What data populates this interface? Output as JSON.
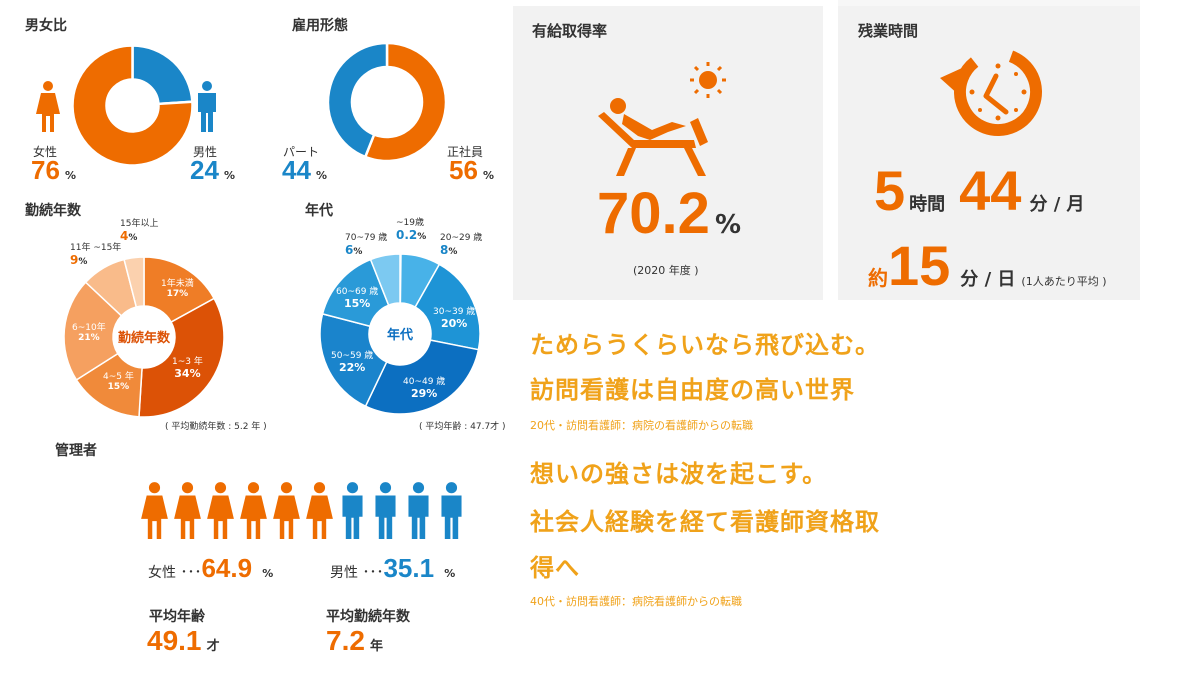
{
  "colors": {
    "orange": "#ee6c00",
    "blue": "#1a86c8",
    "gold": "#f0a21a",
    "panel": "#f2f2f2"
  },
  "chart_data": [
    {
      "type": "pie",
      "id": "gender",
      "title": "男女比",
      "slices": [
        {
          "label": "女性",
          "value": 76,
          "color": "#ee6c00"
        },
        {
          "label": "男性",
          "value": 24,
          "color": "#1a86c8"
        }
      ]
    },
    {
      "type": "pie",
      "id": "employment",
      "title": "雇用形態",
      "slices": [
        {
          "label": "正社員",
          "value": 56,
          "color": "#ee6c00"
        },
        {
          "label": "パート",
          "value": 44,
          "color": "#1a86c8"
        }
      ]
    },
    {
      "type": "pie",
      "id": "tenure",
      "title": "勤続年数",
      "center_label": "勤続年数",
      "note": "( 平均勤続年数 : 5.2 年 )",
      "slices": [
        {
          "label": "1年未満",
          "value": 17,
          "color": "#ef7d26"
        },
        {
          "label": "1~3 年",
          "value": 34,
          "color": "#dc5206"
        },
        {
          "label": "4~5 年",
          "value": 15,
          "color": "#f08a3a"
        },
        {
          "label": "6~10年",
          "value": 21,
          "color": "#f5a060"
        },
        {
          "label": "11年 ~15年",
          "value": 9,
          "color": "#f9bb8a"
        },
        {
          "label": "15年以上",
          "value": 4,
          "color": "#fbd1ae"
        }
      ]
    },
    {
      "type": "pie",
      "id": "age",
      "title": "年代",
      "center_label": "年代",
      "note": "( 平均年齢 : 47.7才 )",
      "slices": [
        {
          "label": "~19歳",
          "value": 0.2,
          "color": "#8fd0f3"
        },
        {
          "label": "20~29 歳",
          "value": 8,
          "color": "#48b2e8"
        },
        {
          "label": "30~39 歳",
          "value": 20,
          "color": "#1e94d6"
        },
        {
          "label": "40~49 歳",
          "value": 29,
          "color": "#0c6fc1"
        },
        {
          "label": "50~59 歳",
          "value": 22,
          "color": "#1a84cc"
        },
        {
          "label": "60~69 歳",
          "value": 15,
          "color": "#2a9ad8"
        },
        {
          "label": "70~79 歳",
          "value": 6,
          "color": "#7cc9f1"
        }
      ]
    }
  ],
  "gender": {
    "title": "男女比",
    "female_label": "女性",
    "female_value": "76",
    "male_label": "男性",
    "male_value": "24",
    "unit": "%"
  },
  "employment": {
    "title": "雇用形態",
    "part_label": "パート",
    "part_value": "44",
    "full_label": "正社員",
    "full_value": "56",
    "unit": "%"
  },
  "tenure": {
    "title": "勤続年数",
    "center": "勤続年数",
    "note": "( 平均勤続年数 : 5.2 年 )",
    "labels": [
      {
        "name": "1年未満",
        "value": "17"
      },
      {
        "name": "1~3 年",
        "value": "34"
      },
      {
        "name": "4~5 年",
        "value": "15"
      },
      {
        "name": "6~10年",
        "value": "21"
      },
      {
        "name": "11年 ~15年",
        "value": "9"
      },
      {
        "name": "15年以上",
        "value": "4"
      }
    ],
    "unit": "%"
  },
  "age": {
    "title": "年代",
    "center": "年代",
    "note": "( 平均年齢 : 47.7才 )",
    "labels": [
      {
        "name": "~19歳",
        "value": "0.2"
      },
      {
        "name": "20~29 歳",
        "value": "8"
      },
      {
        "name": "30~39 歳",
        "value": "20"
      },
      {
        "name": "40~49 歳",
        "value": "29"
      },
      {
        "name": "50~59 歳",
        "value": "22"
      },
      {
        "name": "60~69 歳",
        "value": "15"
      },
      {
        "name": "70~79 歳",
        "value": "6"
      }
    ],
    "unit": "%"
  },
  "managers": {
    "title": "管理者",
    "female_label": "女性 ･･･",
    "female_value": "64.9",
    "male_label": "男性 ･･･",
    "male_value": "35.1",
    "unit": "%",
    "female_icons": 6,
    "male_icons": 4,
    "avg_age_label": "平均年齢",
    "avg_age_value": "49.1",
    "avg_age_unit": "才",
    "avg_tenure_label": "平均勤続年数",
    "avg_tenure_value": "7.2",
    "avg_tenure_unit": "年"
  },
  "leave": {
    "title": "有給取得率",
    "value": "70.2",
    "unit": "%",
    "note": "(2020 年度 )"
  },
  "overtime": {
    "title": "残業時間",
    "hours": "5",
    "hours_unit": "時間",
    "minutes": "44",
    "minutes_unit": "分 / 月",
    "daily_prefix": "約",
    "daily_value": "15",
    "daily_unit": "分 / 日",
    "daily_note": "(1人あたり平均 )"
  },
  "stories": [
    {
      "line1": "ためらうくらいなら飛び込む。",
      "line2": "訪問看護は自由度の高い世界",
      "caption": "20代・訪問看護師：病院の看護師からの転職"
    },
    {
      "line1": "想いの強さは波を起こす。",
      "line2": "社会人経験を経て看護師資格取",
      "line3": "得へ",
      "caption": "40代・訪問看護師：病院看護師からの転職"
    }
  ]
}
